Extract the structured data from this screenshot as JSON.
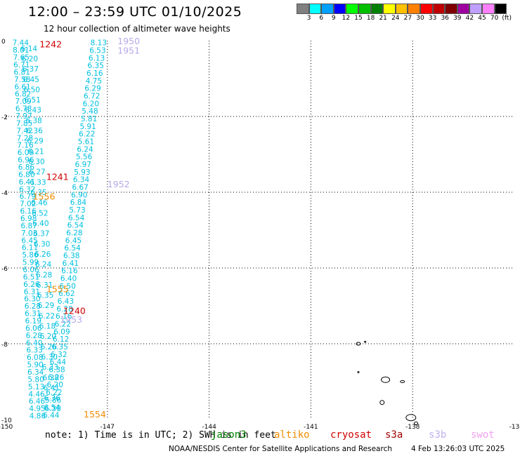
{
  "header": {
    "title": "12:00 – 23:59 UTC 01/10/2025",
    "subtitle": "12 hour collection of altimeter wave heights"
  },
  "color_scale": {
    "colors": [
      "#808080",
      "#00ffff",
      "#00a0ff",
      "#0000ff",
      "#00ff00",
      "#00c000",
      "#008000",
      "#ffff00",
      "#ffc000",
      "#ff8000",
      "#ff0000",
      "#c00000",
      "#800000",
      "#a000a0",
      "#c0a0ff",
      "#ff80ff",
      "#000000"
    ],
    "labels": [
      "3",
      "6",
      "9",
      "12",
      "15",
      "18",
      "21",
      "24",
      "27",
      "30",
      "33",
      "36",
      "39",
      "42",
      "45",
      "70",
      "(ft)"
    ]
  },
  "axes": {
    "x_ticks": [
      "-150",
      "-147",
      "-144",
      "-141",
      "-138",
      "-13"
    ],
    "y_ticks": [
      "0",
      "-2",
      "-4",
      "-6",
      "-8",
      "-10"
    ],
    "xlim": [
      -150,
      -135
    ],
    "ylim": [
      -10,
      0
    ]
  },
  "track_times": [
    {
      "text": "1242",
      "lon": -149.0,
      "lat": -0.08,
      "color": "#d00000"
    },
    {
      "text": "1950",
      "lon": -146.7,
      "lat": 0.0,
      "color": "#b8a8e8"
    },
    {
      "text": "1951",
      "lon": -146.7,
      "lat": -0.25,
      "color": "#b8a8e8"
    },
    {
      "text": "1241",
      "lon": -148.8,
      "lat": -3.58,
      "color": "#d00000"
    },
    {
      "text": "1952",
      "lon": -147.0,
      "lat": -3.78,
      "color": "#b8a8e8"
    },
    {
      "text": "1556",
      "lon": -149.2,
      "lat": -4.1,
      "color": "#f08c00"
    },
    {
      "text": "1555",
      "lon": -148.8,
      "lat": -6.55,
      "color": "#f08c00"
    },
    {
      "text": "1240",
      "lon": -148.3,
      "lat": -7.12,
      "color": "#d00000"
    },
    {
      "text": "1953",
      "lon": -148.4,
      "lat": -7.35,
      "color": "#b8a8e8"
    },
    {
      "text": "1554",
      "lon": -147.7,
      "lat": -9.85,
      "color": "#f08c00"
    }
  ],
  "waves": {
    "color": "#00c0e0",
    "track_a": [
      "7.44",
      "8.01",
      "7.65",
      "6.71",
      "6.81",
      "7.58",
      "6.61",
      "6.82",
      "7.09",
      "6.78",
      "7.97",
      "7.85",
      "7.42",
      "7.28",
      "7.16",
      "6.09",
      "6.96",
      "6.86",
      "6.80",
      "6.41",
      "6.32",
      "6.79",
      "7.02",
      "6.16",
      "6.98",
      "6.87",
      "7.03",
      "6.45",
      "6.11",
      "5.86",
      "5.99",
      "6.06",
      "6.51",
      "6.26",
      "6.31",
      "6.30",
      "6.28",
      "6.31",
      "6.19",
      "6.06",
      "6.28",
      "6.40",
      "6.33",
      "6.08",
      "5.90",
      "6.34",
      "5.80",
      "5.13",
      "4.46",
      "6.46",
      "4.95",
      "4.86"
    ],
    "track_b": [
      "8.13",
      "6.53",
      "6.13",
      "6.35",
      "6.16",
      "4.75",
      "6.29",
      "6.72",
      "6.20",
      "5.48",
      "5.81",
      "5.91",
      "6.22",
      "5.61",
      "6.24",
      "5.56",
      "6.97",
      "5.93",
      "6.34",
      "6.67",
      "6.90",
      "6.84",
      "5.73",
      "6.54",
      "6.54",
      "6.28",
      "6.45",
      "6.54",
      "6.38",
      "6.41",
      "6.16",
      "6.40",
      "6.50",
      "6.62",
      "6.43",
      "6.28",
      "6.16",
      "6.22",
      "6.09",
      "6.12",
      "6.35",
      "6.32",
      "6.44",
      "6.38",
      "6.26",
      "6.20",
      "6.22",
      "5.86",
      "6.54",
      "6.44"
    ],
    "track_c": [
      "6.14",
      "6.20",
      "6.37",
      "6.45",
      "6.50",
      "6.51",
      "6.43",
      "6.38",
      "6.36",
      "6.29",
      "6.21",
      "6.30",
      "6.27",
      "6.33",
      "6.35",
      "6.46",
      "6.52",
      "6.40",
      "6.37",
      "6.30",
      "6.26",
      "6.24",
      "6.28",
      "6.31",
      "6.35",
      "6.29",
      "6.22",
      "6.18",
      "6.20",
      "6.26",
      "6.30",
      "6.33",
      "6.38",
      "6.41",
      "6.36",
      "6.30"
    ]
  },
  "footer": {
    "note": "note: 1) Time is in UTC; 2) SWH is in feet",
    "satellites": [
      {
        "name": "jason3",
        "color": "#008000"
      },
      {
        "name": "altiko",
        "color": "#f08c00"
      },
      {
        "name": "cryosat",
        "color": "#d00000"
      },
      {
        "name": "s3a",
        "color": "#a00000"
      },
      {
        "name": "s3b",
        "color": "#c0b0f0"
      },
      {
        "name": "swot",
        "color": "#f0a0f0"
      }
    ],
    "credit": "NOAA/NESDIS Center for Satellite Applications and Research",
    "timestamp": "4 Feb 13:26:03 UTC 2025"
  }
}
